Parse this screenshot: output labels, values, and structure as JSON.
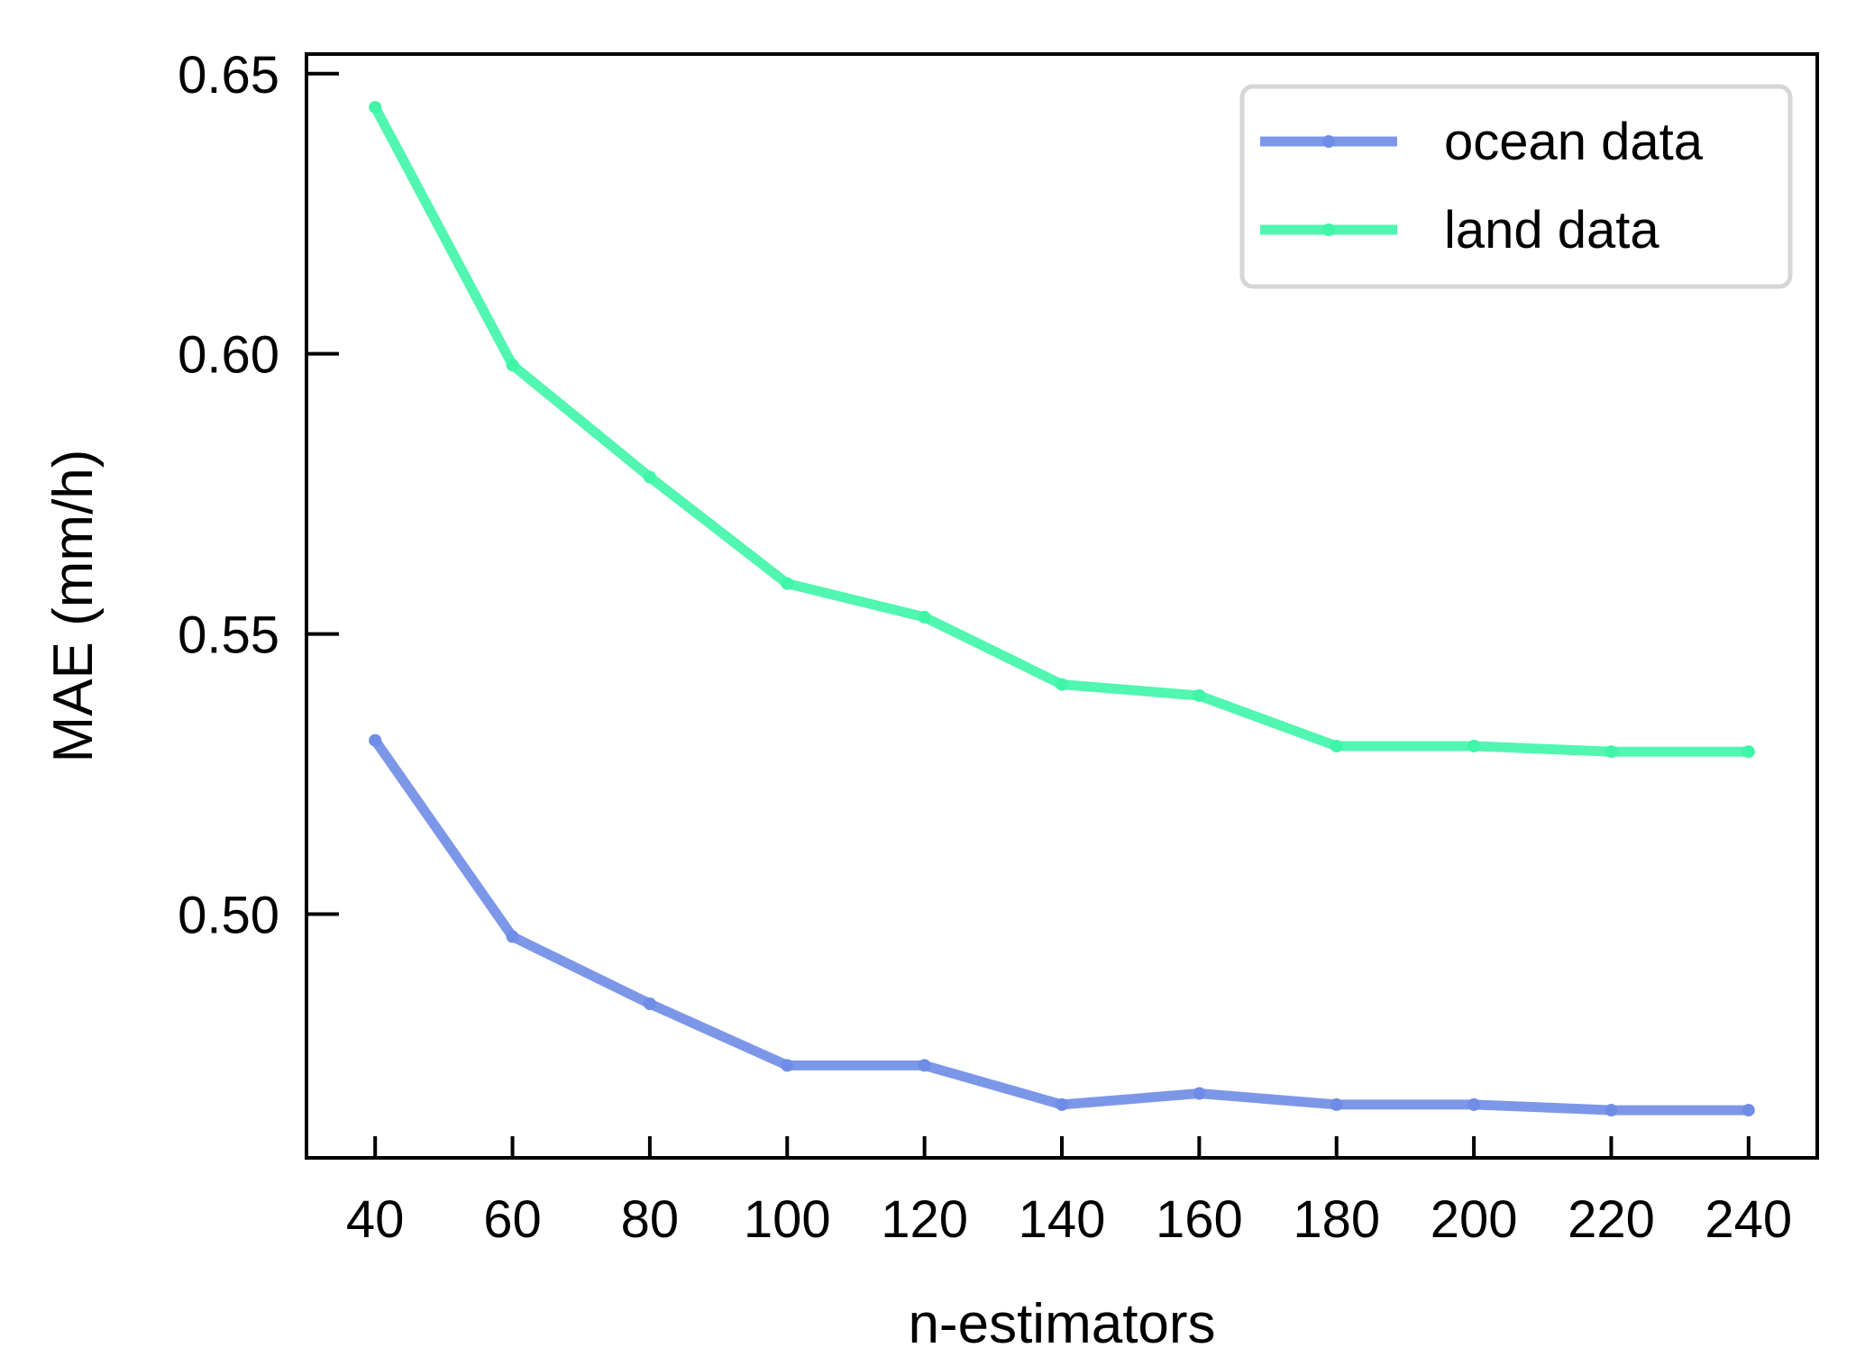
{
  "chart_data": {
    "type": "line",
    "title": "",
    "xlabel": "n-estimators",
    "ylabel": "MAE (mm/h)",
    "x": [
      40,
      60,
      80,
      100,
      120,
      140,
      160,
      180,
      200,
      220,
      240
    ],
    "xticks": [
      "40",
      "60",
      "80",
      "100",
      "120",
      "140",
      "160",
      "180",
      "200",
      "220",
      "240"
    ],
    "yticks": [
      "0.50",
      "0.55",
      "0.60",
      "0.65"
    ],
    "ytick_values": [
      0.5,
      0.55,
      0.6,
      0.65
    ],
    "xlim": [
      30,
      250
    ],
    "ylim": [
      0.4565,
      0.6535
    ],
    "grid": false,
    "legend_position": "top-right",
    "series": [
      {
        "name": "ocean data",
        "color": "#6f8ce6",
        "values": [
          0.531,
          0.496,
          0.484,
          0.473,
          0.473,
          0.466,
          0.468,
          0.466,
          0.466,
          0.465,
          0.465
        ]
      },
      {
        "name": "land data",
        "color": "#3ef5a8",
        "values": [
          0.644,
          0.598,
          0.578,
          0.559,
          0.553,
          0.541,
          0.539,
          0.53,
          0.53,
          0.529,
          0.529
        ]
      }
    ]
  }
}
